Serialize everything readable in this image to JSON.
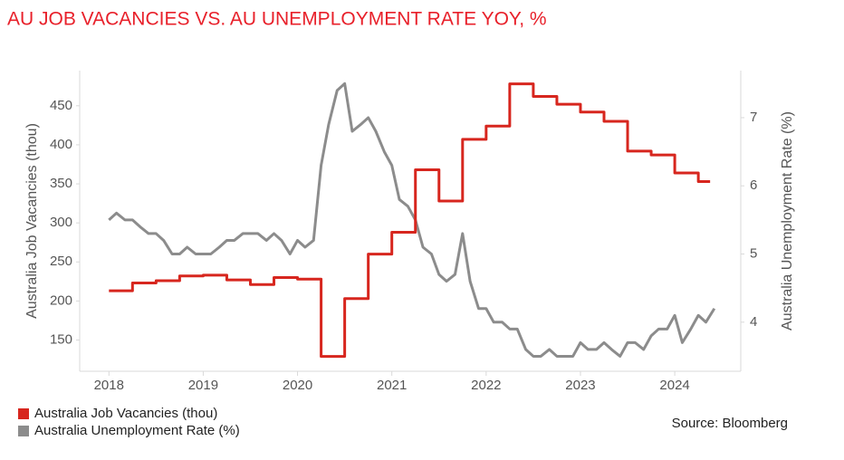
{
  "chart_data": {
    "type": "line",
    "title": "AU JOB VACANCIES VS. AU UNEMPLOYMENT RATE YOY, %",
    "ylabel": "Australia Job Vacancies (thou)",
    "y2label": "Australia Unemployment Rate (%)",
    "source": "Source: Bloomberg",
    "xlim": [
      2017.69,
      2024.7
    ],
    "xticks": [
      2018,
      2019,
      2020,
      2021,
      2022,
      2023,
      2024
    ],
    "ylim": [
      110,
      495
    ],
    "yticks": [
      150,
      200,
      250,
      300,
      350,
      400,
      450
    ],
    "y2lim": [
      3.28,
      7.69
    ],
    "y2ticks": [
      4,
      5,
      6,
      7
    ],
    "legend": "bottom-left",
    "series": [
      {
        "name": "Australia Job Vacancies (thou)",
        "color": "#d7261e",
        "step": true,
        "x": [
          2018,
          2018.25,
          2018.5,
          2018.75,
          2019,
          2019.25,
          2019.5,
          2019.75,
          2020,
          2020.25,
          2020.5,
          2020.75,
          2021,
          2021.25,
          2021.5,
          2021.75,
          2022,
          2022.25,
          2022.5,
          2022.75,
          2023,
          2023.25,
          2023.5,
          2023.75,
          2024,
          2024.25
        ],
        "values": [
          213,
          223,
          226,
          232,
          233,
          227,
          221,
          230,
          228,
          129,
          203,
          260,
          288,
          368,
          328,
          407,
          424,
          478,
          462,
          452,
          442,
          430,
          392,
          387,
          364,
          353
        ]
      },
      {
        "name": "Australia Unemployment Rate (%)",
        "color": "#8c8c8c",
        "axis": "y2",
        "x": [
          2018,
          2018.08,
          2018.17,
          2018.25,
          2018.33,
          2018.42,
          2018.5,
          2018.58,
          2018.67,
          2018.75,
          2018.83,
          2018.92,
          2019,
          2019.08,
          2019.17,
          2019.25,
          2019.33,
          2019.42,
          2019.5,
          2019.58,
          2019.67,
          2019.75,
          2019.83,
          2019.92,
          2020,
          2020.08,
          2020.17,
          2020.25,
          2020.33,
          2020.42,
          2020.5,
          2020.58,
          2020.67,
          2020.75,
          2020.83,
          2020.92,
          2021,
          2021.08,
          2021.17,
          2021.25,
          2021.33,
          2021.42,
          2021.5,
          2021.58,
          2021.67,
          2021.75,
          2021.83,
          2021.92,
          2022,
          2022.08,
          2022.17,
          2022.25,
          2022.33,
          2022.42,
          2022.5,
          2022.58,
          2022.67,
          2022.75,
          2022.83,
          2022.92,
          2023,
          2023.08,
          2023.17,
          2023.25,
          2023.33,
          2023.42,
          2023.5,
          2023.58,
          2023.67,
          2023.75,
          2023.83,
          2023.92,
          2024,
          2024.08,
          2024.17,
          2024.25,
          2024.33,
          2024.42
        ],
        "values": [
          5.5,
          5.6,
          5.5,
          5.5,
          5.4,
          5.3,
          5.3,
          5.2,
          5.0,
          5.0,
          5.1,
          5.0,
          5.0,
          5.0,
          5.1,
          5.2,
          5.2,
          5.3,
          5.3,
          5.3,
          5.2,
          5.3,
          5.2,
          5.0,
          5.2,
          5.1,
          5.2,
          6.3,
          6.9,
          7.4,
          7.5,
          6.8,
          6.9,
          7.0,
          6.8,
          6.5,
          6.3,
          5.8,
          5.7,
          5.5,
          5.1,
          5.0,
          4.7,
          4.6,
          4.7,
          5.3,
          4.6,
          4.2,
          4.2,
          4.0,
          4.0,
          3.9,
          3.9,
          3.6,
          3.5,
          3.5,
          3.6,
          3.5,
          3.5,
          3.5,
          3.7,
          3.6,
          3.6,
          3.7,
          3.6,
          3.5,
          3.7,
          3.7,
          3.6,
          3.8,
          3.9,
          3.9,
          4.1,
          3.7,
          3.9,
          4.1,
          4.0,
          4.2
        ]
      }
    ]
  }
}
